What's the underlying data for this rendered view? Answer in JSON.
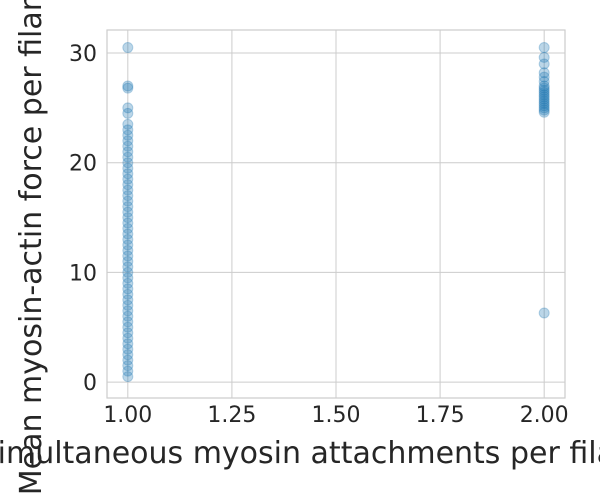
{
  "chart_data": {
    "type": "scatter",
    "xlabel": "Simultaneous myosin attachments per filament",
    "ylabel": "Mean myosin-actin force per filament",
    "xlim": [
      0.95,
      2.05
    ],
    "ylim": [
      -1.45,
      32.1
    ],
    "xticks": [
      {
        "value": 1,
        "label": "1.00"
      },
      {
        "value": 1.25,
        "label": "1.25"
      },
      {
        "value": 1.5,
        "label": "1.50"
      },
      {
        "value": 1.75,
        "label": "1.75"
      },
      {
        "value": 2,
        "label": "2.00"
      }
    ],
    "yticks": [
      0,
      10,
      20,
      30
    ],
    "grid": true,
    "series": [
      {
        "color": "#1f77b4",
        "alpha": 0.3,
        "x": [
          1,
          1,
          1,
          1,
          1,
          1,
          1,
          1,
          1,
          1,
          1,
          1,
          1,
          1,
          1,
          1,
          1,
          1,
          1,
          1,
          1,
          1,
          1,
          1,
          1,
          1,
          1,
          1,
          1,
          1,
          1,
          1,
          1,
          1,
          1,
          1,
          1,
          1,
          1,
          1,
          1,
          1,
          1,
          1,
          1,
          1,
          1,
          1,
          1,
          1,
          1,
          1,
          2,
          2,
          2,
          2,
          2,
          2,
          2,
          2,
          2,
          2,
          2,
          2,
          2,
          2,
          2,
          2,
          2,
          2,
          2,
          2
        ],
        "y": [
          0.5,
          1,
          1.5,
          2,
          2.5,
          3,
          3.5,
          4,
          4.5,
          5,
          5.5,
          6,
          6.5,
          7,
          7.5,
          8,
          8.5,
          9,
          9.5,
          10,
          10.5,
          11,
          11.5,
          12,
          12.5,
          13,
          13.5,
          14,
          14.5,
          15,
          15.5,
          16,
          16.5,
          17,
          17.5,
          18,
          18.5,
          19,
          19.5,
          20,
          20.5,
          21,
          21.5,
          22,
          22.5,
          23,
          23.5,
          24.5,
          25,
          26.8,
          27,
          30.5,
          24.6,
          24.8,
          25,
          25.2,
          25.4,
          25.6,
          25.8,
          26,
          26.2,
          26.4,
          26.6,
          26.8,
          27,
          27.4,
          27.8,
          28.2,
          29,
          29.6,
          30.5,
          6.3
        ]
      }
    ]
  }
}
